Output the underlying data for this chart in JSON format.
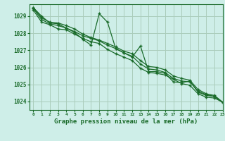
{
  "title": "Graphe pression niveau de la mer (hPa)",
  "bg_color": "#ceeee8",
  "grid_color": "#aaccbb",
  "line_color": "#1a6b2a",
  "xlim": [
    -0.5,
    23
  ],
  "ylim": [
    1023.5,
    1029.7
  ],
  "yticks": [
    1024,
    1025,
    1026,
    1027,
    1028,
    1029
  ],
  "xticks": [
    0,
    1,
    2,
    3,
    4,
    5,
    6,
    7,
    8,
    9,
    10,
    11,
    12,
    13,
    14,
    15,
    16,
    17,
    18,
    19,
    20,
    21,
    22,
    23
  ],
  "series": [
    [
      1029.5,
      1029.0,
      1028.6,
      1028.55,
      1028.3,
      1028.05,
      1027.65,
      1027.3,
      1029.15,
      1028.65,
      1027.1,
      1026.85,
      1026.6,
      1027.25,
      1025.75,
      1025.75,
      1025.65,
      1025.15,
      1025.1,
      1025.2,
      1024.55,
      1024.35,
      1024.3,
      1023.95
    ],
    [
      1029.35,
      1028.65,
      1028.5,
      1028.25,
      1028.2,
      1027.95,
      1027.7,
      1027.5,
      1027.4,
      1027.05,
      1026.8,
      1026.6,
      1026.4,
      1025.95,
      1025.7,
      1025.65,
      1025.55,
      1025.3,
      1025.05,
      1024.95,
      1024.45,
      1024.25,
      1024.2,
      1023.95
    ],
    [
      1029.45,
      1028.8,
      1028.55,
      1028.45,
      1028.3,
      1028.1,
      1027.85,
      1027.7,
      1027.55,
      1027.3,
      1027.1,
      1026.85,
      1026.65,
      1026.2,
      1025.9,
      1025.85,
      1025.7,
      1025.35,
      1025.2,
      1025.15,
      1024.6,
      1024.4,
      1024.3,
      1023.95
    ],
    [
      1029.5,
      1028.9,
      1028.65,
      1028.6,
      1028.45,
      1028.25,
      1027.95,
      1027.75,
      1027.6,
      1027.4,
      1027.2,
      1026.95,
      1026.8,
      1026.4,
      1026.05,
      1026.0,
      1025.85,
      1025.5,
      1025.35,
      1025.25,
      1024.7,
      1024.45,
      1024.35,
      1023.95
    ]
  ]
}
